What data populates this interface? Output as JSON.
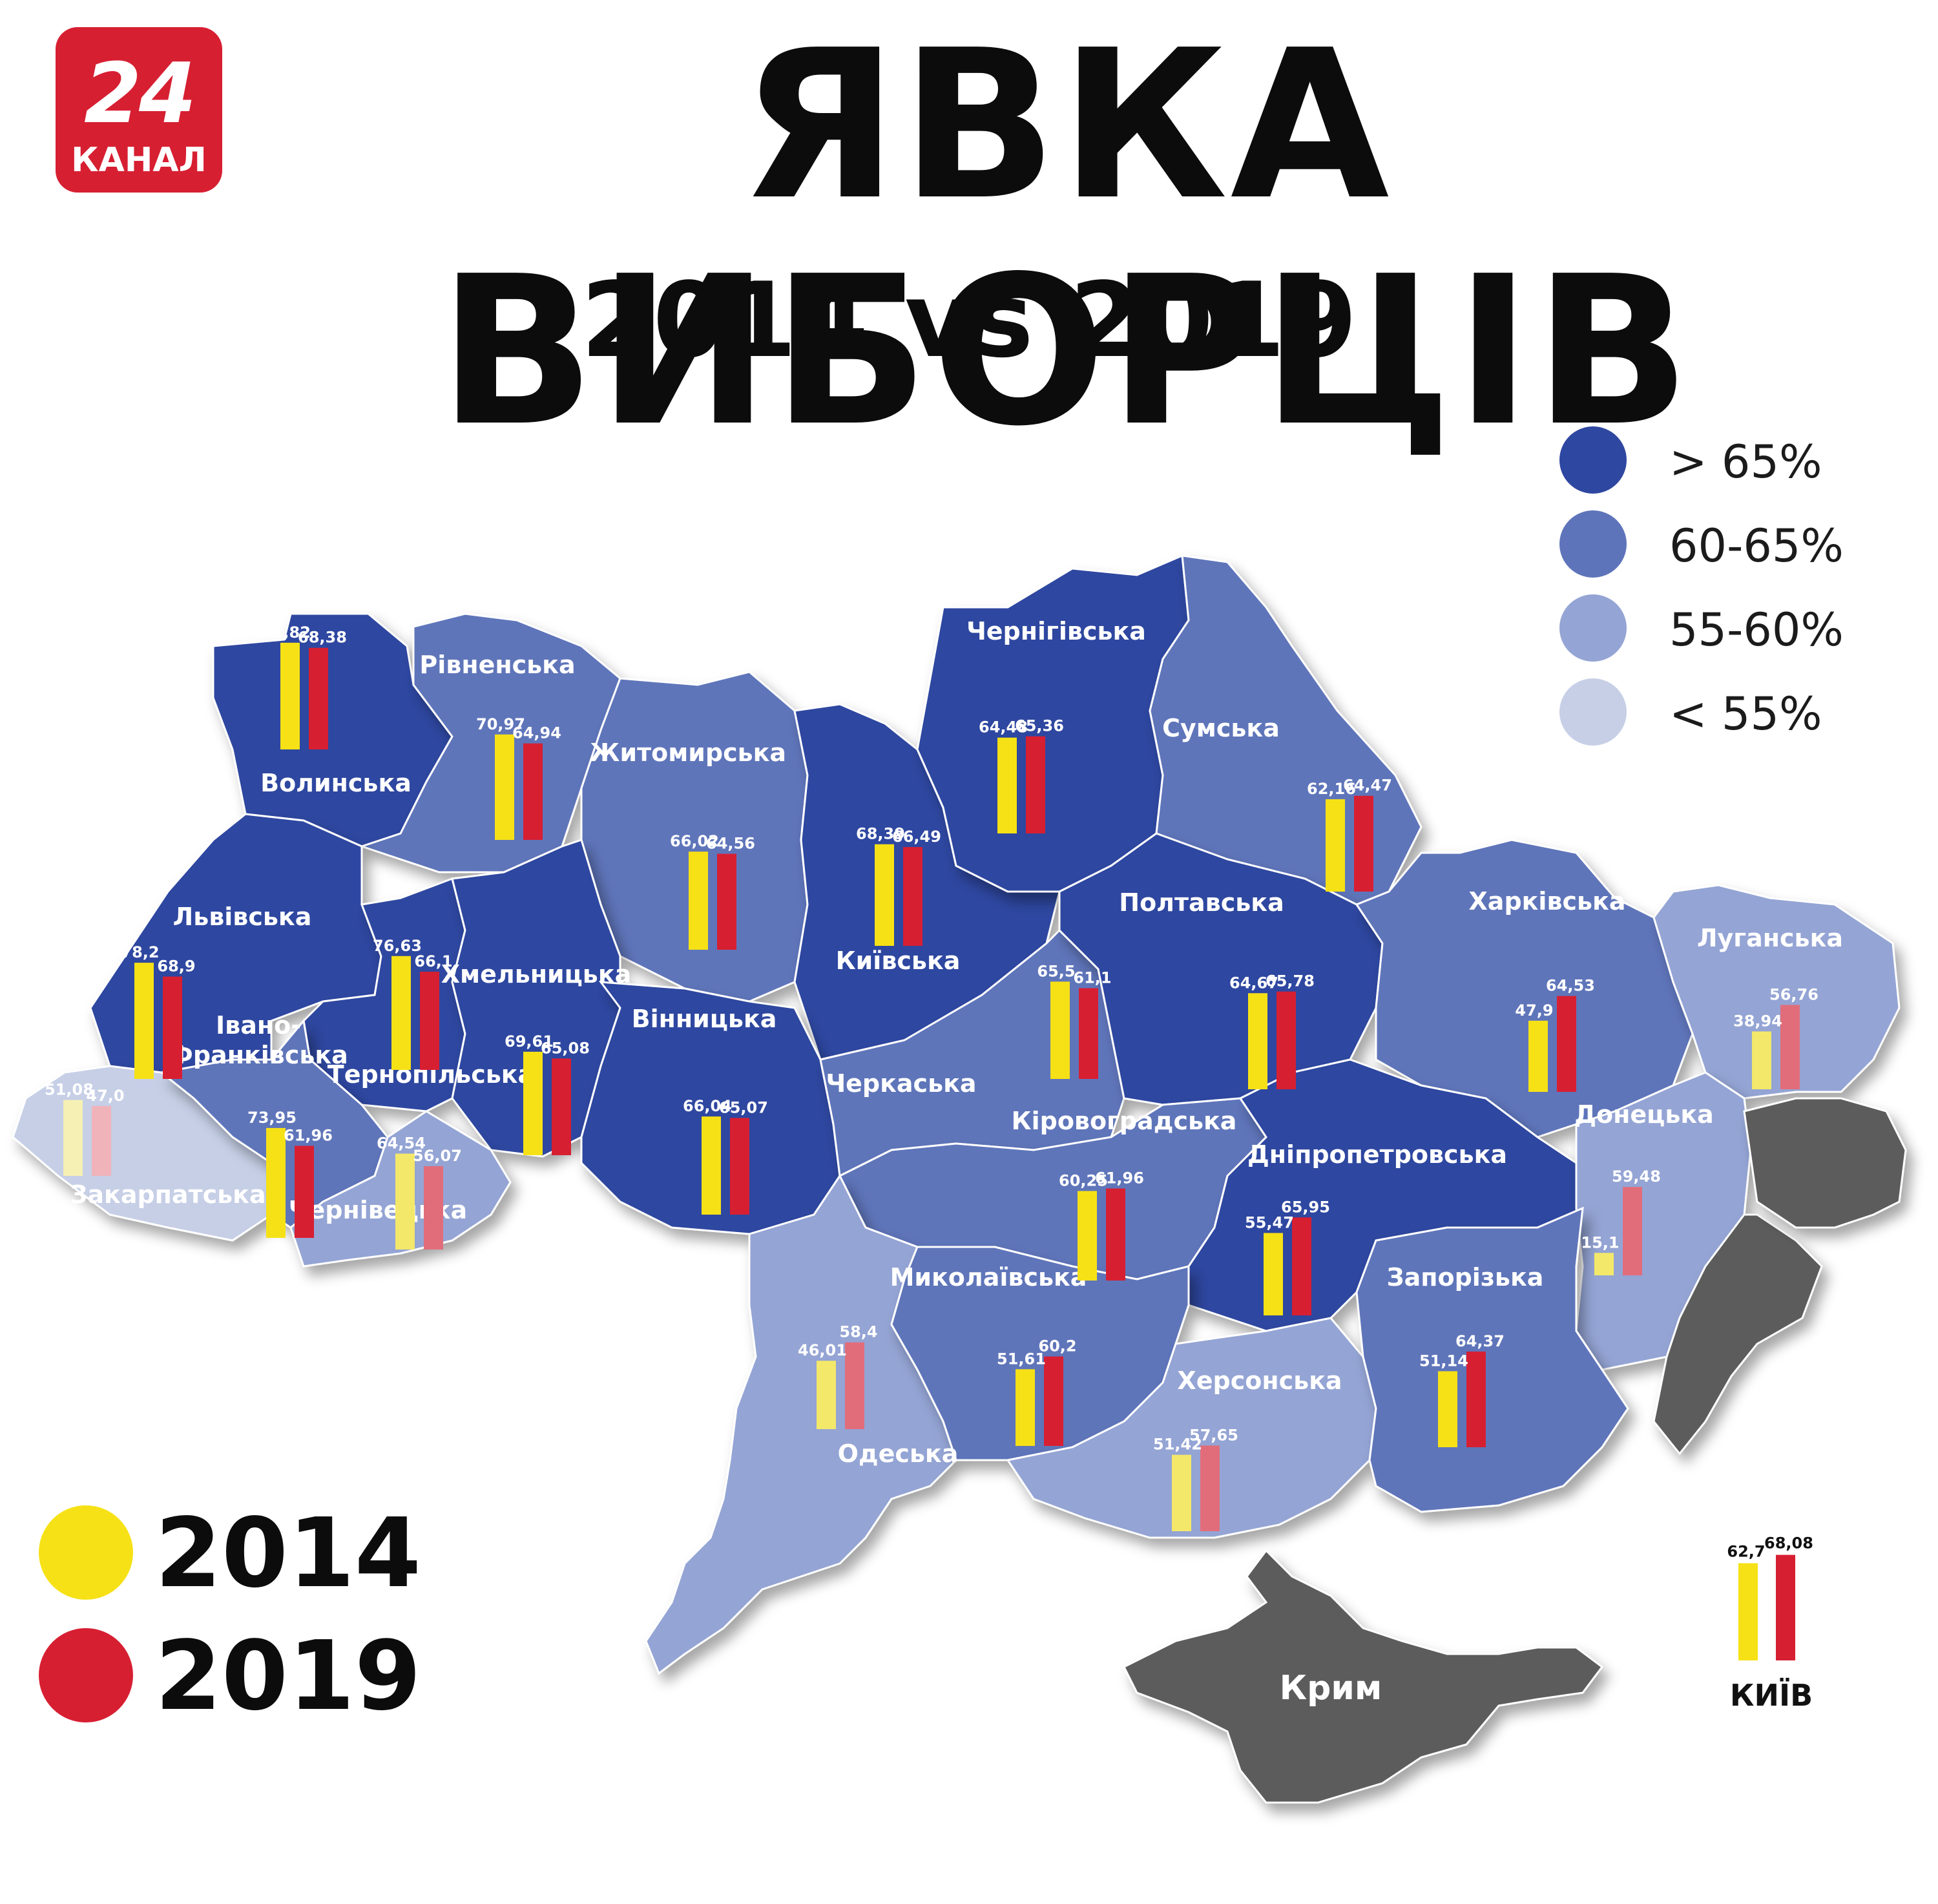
{
  "header": {
    "logo_number": "24",
    "logo_text": "КАНАЛ",
    "title": "ЯВКА ВИБОРЦІВ",
    "subtitle": "2014 vs 2019"
  },
  "colors": {
    "gt65": "#2e47a0",
    "r60_65": "#5e74ba",
    "r55_60": "#94a4d4",
    "lt55": "#c6cfe6",
    "occupied": "#5c5c5c",
    "year2014": "#f6e116",
    "year2019": "#d71f32"
  },
  "legend": {
    "items": [
      {
        "label": "> 65%",
        "color": "#2e47a0"
      },
      {
        "label": "60-65%",
        "color": "#5e74ba"
      },
      {
        "label": "55-60%",
        "color": "#94a4d4"
      },
      {
        "label": "< 55%",
        "color": "#c6cfe6"
      }
    ],
    "years": [
      {
        "label": "2014",
        "color": "#f6e116"
      },
      {
        "label": "2019",
        "color": "#d71f32"
      }
    ]
  },
  "chart_data": {
    "type": "bar",
    "unit": "%",
    "series": [
      {
        "name": "2014",
        "color": "#f6e116"
      },
      {
        "name": "2019",
        "color": "#d71f32"
      }
    ],
    "regions": [
      {
        "name": "Волинська",
        "v2014": 71.82,
        "l2014": "71,82",
        "v2019": 68.38,
        "l2019": "68,38",
        "band": "gt65"
      },
      {
        "name": "Рівненська",
        "v2014": 70.97,
        "l2014": "70,97",
        "v2019": 64.94,
        "l2019": "64,94",
        "band": "r60_65"
      },
      {
        "name": "Житомирська",
        "v2014": 66.02,
        "l2014": "66,02",
        "v2019": 64.56,
        "l2019": "64,56",
        "band": "r60_65"
      },
      {
        "name": "Київська",
        "v2014": 68.39,
        "l2014": "68,39",
        "v2019": 66.49,
        "l2019": "66,49",
        "band": "gt65"
      },
      {
        "name": "Чернігівська",
        "v2014": 64.48,
        "l2014": "64,48",
        "v2019": 65.36,
        "l2019": "65,36",
        "band": "gt65"
      },
      {
        "name": "Сумська",
        "v2014": 62.16,
        "l2014": "62,16",
        "v2019": 64.47,
        "l2019": "64,47",
        "band": "r60_65"
      },
      {
        "name": "Львівська",
        "v2014": 78.2,
        "l2014": "78,2",
        "v2019": 68.9,
        "l2019": "68,9",
        "band": "gt65"
      },
      {
        "name": "Тернопільська",
        "v2014": 76.63,
        "l2014": "76,63",
        "v2019": 66.1,
        "l2019": "66,1",
        "band": "gt65"
      },
      {
        "name": "Хмельницька",
        "v2014": 69.61,
        "l2014": "69,61",
        "v2019": 65.08,
        "l2019": "65,08",
        "band": "gt65"
      },
      {
        "name": "Вінницька",
        "v2014": 66.04,
        "l2014": "66,04",
        "v2019": 65.07,
        "l2019": "65,07",
        "band": "gt65"
      },
      {
        "name": "Черкаська",
        "v2014": 65.5,
        "l2014": "65,5",
        "v2019": 61.1,
        "l2019": "61,1",
        "band": "r60_65"
      },
      {
        "name": "Полтавська",
        "v2014": 64.67,
        "l2014": "64,67",
        "v2019": 65.78,
        "l2019": "65,78",
        "band": "gt65"
      },
      {
        "name": "Харківська",
        "v2014": 47.9,
        "l2014": "47,9",
        "v2019": 64.53,
        "l2019": "64,53",
        "band": "r60_65"
      },
      {
        "name": "Луганська",
        "v2014": 38.94,
        "l2014": "38,94",
        "v2019": 56.76,
        "l2019": "56,76",
        "band": "r55_60"
      },
      {
        "name": "Закарпатська",
        "v2014": 51.08,
        "l2014": "51,08",
        "v2019": 47.0,
        "l2019": "47,0",
        "band": "lt55"
      },
      {
        "name": "Івано-Франківська",
        "v2014": 73.95,
        "l2014": "73,95",
        "v2019": 61.96,
        "l2019": "61,96",
        "band": "r60_65"
      },
      {
        "name": "Чернівецька",
        "v2014": 64.54,
        "l2014": "64,54",
        "v2019": 56.07,
        "l2019": "56,07",
        "band": "r55_60"
      },
      {
        "name": "Кіровоградська",
        "v2014": 60.25,
        "l2014": "60,25",
        "v2019": 61.96,
        "l2019": "61,96",
        "band": "r60_65"
      },
      {
        "name": "Дніпропетровська",
        "v2014": 55.47,
        "l2014": "55,47",
        "v2019": 65.95,
        "l2019": "65,95",
        "band": "gt65"
      },
      {
        "name": "Донецька",
        "v2014": 15.1,
        "l2014": "15,1",
        "v2019": 59.48,
        "l2019": "59,48",
        "band": "r55_60"
      },
      {
        "name": "Одеська",
        "v2014": 46.01,
        "l2014": "46,01",
        "v2019": 58.4,
        "l2019": "58,4",
        "band": "r55_60"
      },
      {
        "name": "Миколаївська",
        "v2014": 51.61,
        "l2014": "51,61",
        "v2019": 60.2,
        "l2019": "60,2",
        "band": "r60_65"
      },
      {
        "name": "Херсонська",
        "v2014": 51.42,
        "l2014": "51,42",
        "v2019": 57.65,
        "l2019": "57,65",
        "band": "r55_60"
      },
      {
        "name": "Запорізька",
        "v2014": 51.14,
        "l2014": "51,14",
        "v2019": 64.37,
        "l2019": "64,37",
        "band": "r60_65"
      }
    ],
    "kyiv_city": {
      "name": "КИЇВ",
      "v2014": 62.7,
      "l2014": "62,7",
      "v2019": 68.08,
      "l2019": "68,08"
    },
    "occupied": [
      {
        "name": "Крим"
      }
    ]
  }
}
